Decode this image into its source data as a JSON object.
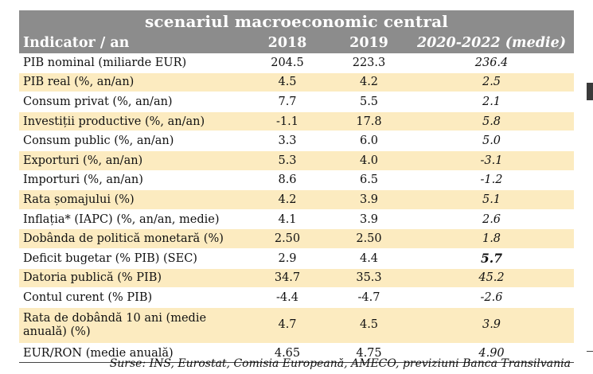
{
  "table": {
    "title": "scenariul macroeconomic central",
    "columns": [
      "Indicator / an",
      "2018",
      "2019",
      "2020-2022 (medie)"
    ],
    "rows": [
      {
        "label": "PIB nominal (miliarde EUR)",
        "v2018": "204.5",
        "v2019": "223.3",
        "avg": "236.4"
      },
      {
        "label": "PIB real (%, an/an)",
        "v2018": "4.5",
        "v2019": "4.2",
        "avg": "2.5"
      },
      {
        "label": "Consum privat (%, an/an)",
        "v2018": "7.7",
        "v2019": "5.5",
        "avg": "2.1"
      },
      {
        "label": "Investiții productive (%, an/an)",
        "v2018": "-1.1",
        "v2019": "17.8",
        "avg": "5.8"
      },
      {
        "label": "Consum public (%, an/an)",
        "v2018": "3.3",
        "v2019": "6.0",
        "avg": "5.0"
      },
      {
        "label": "Exporturi (%, an/an)",
        "v2018": "5.3",
        "v2019": "4.0",
        "avg": "-3.1"
      },
      {
        "label": "Importuri (%, an/an)",
        "v2018": "8.6",
        "v2019": "6.5",
        "avg": "-1.2"
      },
      {
        "label": "Rata șomajului (%)",
        "v2018": "4.2",
        "v2019": "3.9",
        "avg": "5.1"
      },
      {
        "label": "Inflația* (IAPC) (%, an/an, medie)",
        "v2018": "4.1",
        "v2019": "3.9",
        "avg": "2.6"
      },
      {
        "label": "Dobânda de politică monetară (%)",
        "v2018": "2.50",
        "v2019": "2.50",
        "avg": "1.8"
      },
      {
        "label": "Deficit bugetar (% PIB) (SEC)",
        "v2018": "2.9",
        "v2019": "4.4",
        "avg": "5.7"
      },
      {
        "label": "Datoria publică (% PIB)",
        "v2018": "34.7",
        "v2019": "35.3",
        "avg": "45.2"
      },
      {
        "label": "Contul curent (% PIB)",
        "v2018": "-4.4",
        "v2019": "-4.7",
        "avg": "-2.6"
      },
      {
        "label": "Rata de dobândă 10 ani (medie anuală) (%)",
        "v2018": "4.7",
        "v2019": "4.5",
        "avg": "3.9"
      },
      {
        "label": "EUR/RON (medie anuală)",
        "v2018": "4.65",
        "v2019": "4.75",
        "avg": "4.90"
      }
    ],
    "source": "Surse: INS, Eurostat, Comisia Europeană, AMECO, previziuni Banca Transilvania"
  },
  "colors": {
    "header_bg": "#8c8c8c",
    "row_shade": "#fcebc0",
    "header_text": "#ffffff"
  }
}
